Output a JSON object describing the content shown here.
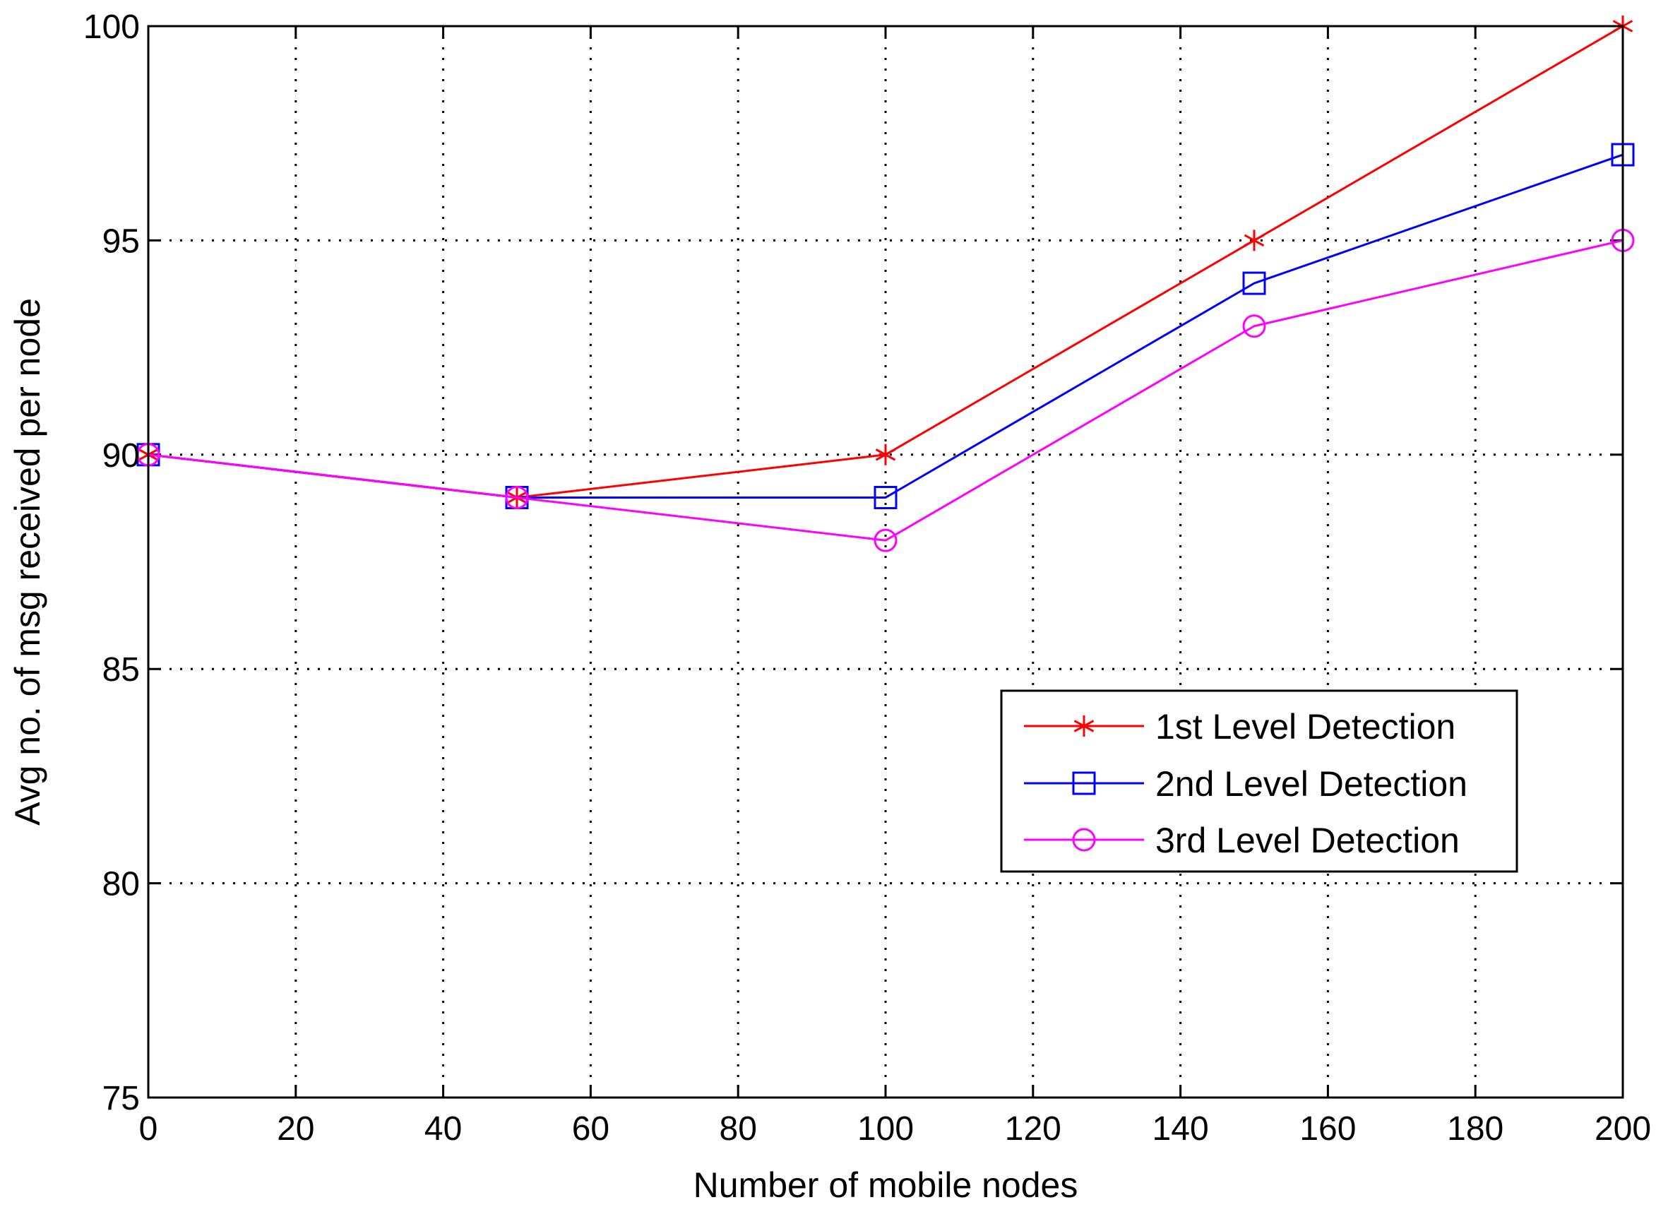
{
  "chart_data": {
    "type": "line",
    "xlabel": "Number of mobile nodes",
    "ylabel": "Avg no. of msg received per node",
    "xlim": [
      0,
      200
    ],
    "ylim": [
      75,
      100
    ],
    "xticks": [
      0,
      20,
      40,
      60,
      80,
      100,
      120,
      140,
      160,
      180,
      200
    ],
    "yticks": [
      75,
      80,
      85,
      90,
      95,
      100
    ],
    "grid": true,
    "legend_position": "lower-right",
    "x": [
      0,
      50,
      100,
      150,
      200
    ],
    "series": [
      {
        "name": "1st Level Detection",
        "values": [
          90,
          89,
          90,
          95,
          100
        ],
        "color": "#ff0000",
        "marker": "asterisk"
      },
      {
        "name": "2nd Level Detection",
        "values": [
          90,
          89,
          89,
          94,
          97
        ],
        "color": "#0000ff",
        "marker": "square"
      },
      {
        "name": "3rd Level Detection",
        "values": [
          90,
          89,
          88,
          93,
          95
        ],
        "color": "#ff00ff",
        "marker": "circle"
      }
    ]
  }
}
